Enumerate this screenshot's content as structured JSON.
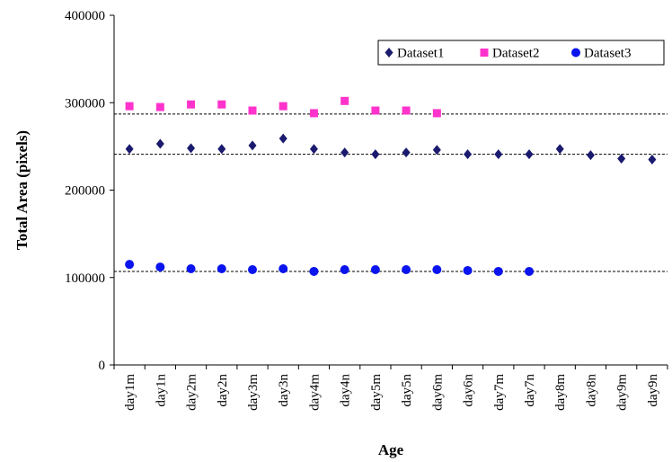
{
  "chart_data": {
    "type": "scatter",
    "xlabel": "Age",
    "ylabel": "Total Area (pixels)",
    "categories": [
      "day1m",
      "day1n",
      "day2m",
      "day2n",
      "day3m",
      "day3n",
      "day4m",
      "day4n",
      "day5m",
      "day5n",
      "day6m",
      "day6n",
      "day7m",
      "day7n",
      "day8m",
      "day8n",
      "day9m",
      "day9n"
    ],
    "ylim": [
      0,
      400000
    ],
    "yticks": [
      0,
      100000,
      200000,
      300000,
      400000
    ],
    "ytick_labels": [
      "0",
      "100000",
      "200000",
      "300000",
      "400000"
    ],
    "legend_position": "top-right",
    "series": [
      {
        "name": "Dataset1",
        "marker": "diamond",
        "color": "#1a1a6e",
        "values": [
          247000,
          253000,
          248000,
          247000,
          251000,
          259000,
          247000,
          243000,
          241000,
          243000,
          246000,
          241000,
          241000,
          241000,
          247000,
          240000,
          236000,
          235000
        ]
      },
      {
        "name": "Dataset2",
        "marker": "square",
        "color": "#ff33cc",
        "values": [
          296000,
          295000,
          298000,
          298000,
          291000,
          296000,
          288000,
          302000,
          291000,
          291000,
          288000,
          null,
          null,
          null,
          null,
          null,
          null,
          null
        ]
      },
      {
        "name": "Dataset3",
        "marker": "circle",
        "color": "#0a14ee",
        "values": [
          115000,
          112000,
          110000,
          110000,
          109000,
          110000,
          107000,
          109000,
          109000,
          109000,
          109000,
          108000,
          107000,
          107000,
          null,
          null,
          null,
          null
        ]
      }
    ],
    "reference_lines": [
      287000,
      241000,
      107000
    ]
  }
}
